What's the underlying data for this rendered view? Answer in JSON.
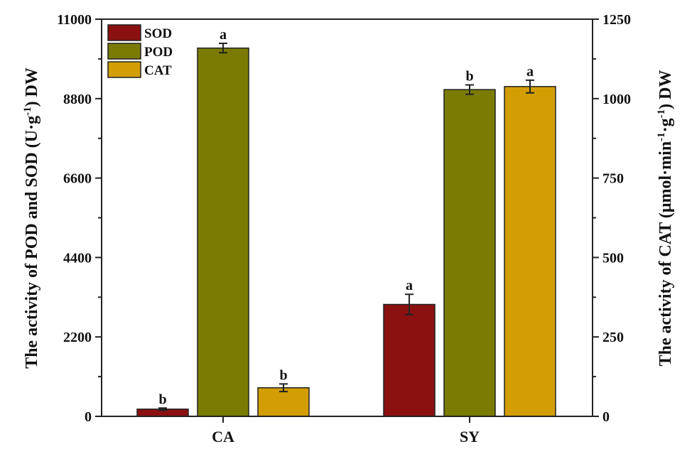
{
  "chart_data": {
    "type": "bar",
    "categories": [
      "CA",
      "SY"
    ],
    "series": [
      {
        "name": "SOD",
        "axis": "left",
        "color": "#8b1111",
        "values": [
          200,
          3100
        ],
        "errors": [
          30,
          280
        ],
        "letters": [
          "b",
          "a"
        ]
      },
      {
        "name": "POD",
        "axis": "left",
        "color": "#7b7b02",
        "values": [
          10200,
          9050
        ],
        "errors": [
          130,
          130
        ],
        "letters": [
          "a",
          "b"
        ]
      },
      {
        "name": "CAT",
        "axis": "right",
        "color": "#d29e04",
        "values": [
          90,
          1038
        ],
        "errors": [
          12,
          20
        ],
        "letters": [
          "b",
          "a"
        ]
      }
    ],
    "ylabel": "The activity of POD and SOD (U·g⁻¹) DW",
    "ylabel_right": "The activity of CAT (μmol·min⁻¹·g⁻¹) DW",
    "xlabel": "",
    "ylim": [
      0,
      11000
    ],
    "ylim_right": [
      0,
      1250
    ],
    "yticks": [
      0,
      2200,
      4400,
      6600,
      8800,
      11000
    ],
    "yticks_right": [
      0,
      250,
      500,
      750,
      1000,
      1250
    ],
    "grid": false,
    "legend_position": "upper left"
  },
  "labels": {
    "ylabel_left_main": "The activity of POD and SOD (U·g",
    "ylabel_left_sup": "-1",
    "ylabel_left_end": ") DW",
    "ylabel_right_main": "The activity of CAT (μmol·min",
    "ylabel_right_sup1": "-1",
    "ylabel_right_mid": "·g",
    "ylabel_right_sup2": "-1",
    "ylabel_right_end": ") DW"
  }
}
